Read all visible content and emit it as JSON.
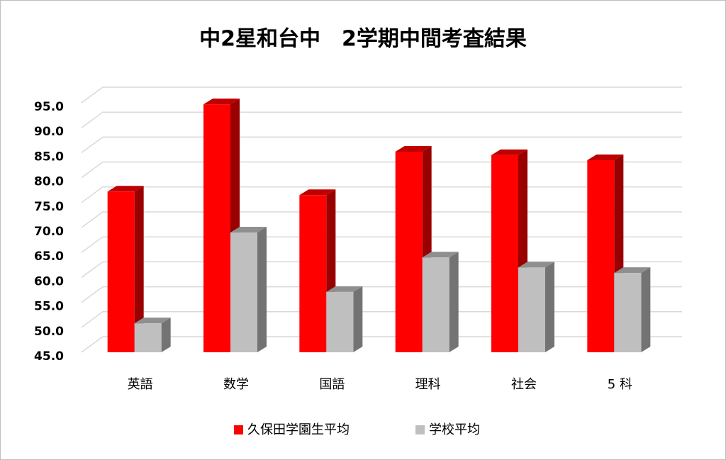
{
  "chart_data": {
    "type": "bar3d",
    "title": "中2星和台中　2学期中間考査結果",
    "categories": [
      "英語",
      "数学",
      "国語",
      "理科",
      "社会",
      "5 科"
    ],
    "series": [
      {
        "name": "久保田学園生平均",
        "color": "#ff0000",
        "values": [
          77.2,
          94.7,
          76.5,
          85.2,
          84.5,
          83.5
        ]
      },
      {
        "name": "学校平均",
        "color": "#bfbfbf",
        "values": [
          50.8,
          69.0,
          57.1,
          64.0,
          62.0,
          60.9
        ]
      }
    ],
    "ylim": [
      45,
      95
    ],
    "yticks": [
      {
        "value": 45,
        "label": "45.0"
      },
      {
        "value": 50,
        "label": "50.0"
      },
      {
        "value": 55,
        "label": "55.0"
      },
      {
        "value": 60,
        "label": "60.0"
      },
      {
        "value": 65,
        "label": "65.0"
      },
      {
        "value": 70,
        "label": "70.0"
      },
      {
        "value": 75,
        "label": "75.0"
      },
      {
        "value": 80,
        "label": "80.0"
      },
      {
        "value": 85,
        "label": "85.0"
      },
      {
        "value": 90,
        "label": "90.0"
      },
      {
        "value": 95,
        "label": "95.0"
      }
    ],
    "grid": true,
    "legend": "bottom"
  }
}
